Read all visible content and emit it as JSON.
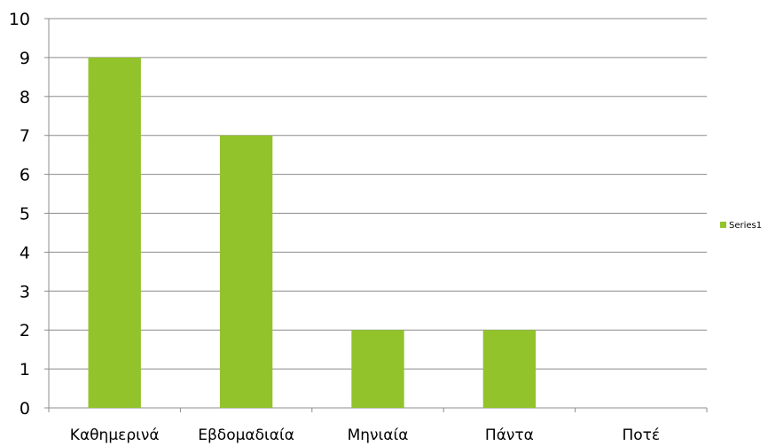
{
  "chart_data": {
    "type": "bar",
    "categories": [
      "Καθημερινά",
      "Εβδομαδιαία",
      "Μηνιαία",
      "Πάντα",
      "Ποτέ"
    ],
    "series": [
      {
        "name": "Series1",
        "values": [
          9,
          7,
          2,
          2,
          0
        ],
        "color": "#92c32a"
      }
    ],
    "title": "",
    "xlabel": "",
    "ylabel": "",
    "ylim": [
      0,
      10
    ],
    "yticks": [
      0,
      1,
      2,
      3,
      4,
      5,
      6,
      7,
      8,
      9,
      10
    ],
    "grid": true,
    "legend_position": "right"
  }
}
